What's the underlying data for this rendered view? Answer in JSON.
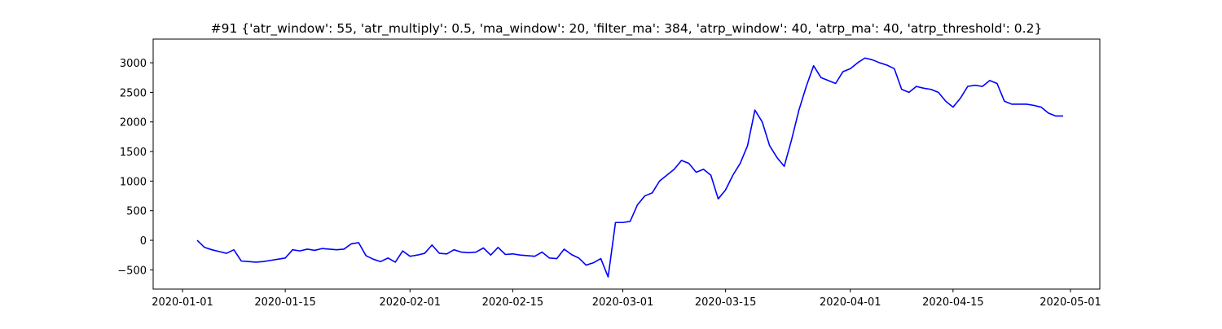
{
  "chart_data": {
    "type": "line",
    "title": "#91 {'atr_window': 55, 'atr_multiply': 0.5, 'ma_window': 20, 'filter_ma': 384, 'atrp_window': 40, 'atrp_ma': 40, 'atrp_threshold': 0.2}",
    "x": [
      "2020-01-03",
      "2020-01-04",
      "2020-01-05",
      "2020-01-06",
      "2020-01-07",
      "2020-01-08",
      "2020-01-09",
      "2020-01-10",
      "2020-01-11",
      "2020-01-12",
      "2020-01-13",
      "2020-01-14",
      "2020-01-15",
      "2020-01-16",
      "2020-01-17",
      "2020-01-18",
      "2020-01-19",
      "2020-01-20",
      "2020-01-21",
      "2020-01-22",
      "2020-01-23",
      "2020-01-24",
      "2020-01-25",
      "2020-01-26",
      "2020-01-27",
      "2020-01-28",
      "2020-01-29",
      "2020-01-30",
      "2020-01-31",
      "2020-02-01",
      "2020-02-02",
      "2020-02-03",
      "2020-02-04",
      "2020-02-05",
      "2020-02-06",
      "2020-02-07",
      "2020-02-08",
      "2020-02-09",
      "2020-02-10",
      "2020-02-11",
      "2020-02-12",
      "2020-02-13",
      "2020-02-14",
      "2020-02-15",
      "2020-02-16",
      "2020-02-17",
      "2020-02-18",
      "2020-02-19",
      "2020-02-20",
      "2020-02-21",
      "2020-02-22",
      "2020-02-23",
      "2020-02-24",
      "2020-02-25",
      "2020-02-26",
      "2020-02-27",
      "2020-02-28",
      "2020-02-29",
      "2020-03-01",
      "2020-03-02",
      "2020-03-03",
      "2020-03-04",
      "2020-03-05",
      "2020-03-06",
      "2020-03-07",
      "2020-03-08",
      "2020-03-09",
      "2020-03-10",
      "2020-03-11",
      "2020-03-12",
      "2020-03-13",
      "2020-03-14",
      "2020-03-15",
      "2020-03-16",
      "2020-03-17",
      "2020-03-18",
      "2020-03-19",
      "2020-03-20",
      "2020-03-21",
      "2020-03-22",
      "2020-03-23",
      "2020-03-24",
      "2020-03-25",
      "2020-03-26",
      "2020-03-27",
      "2020-03-28",
      "2020-03-29",
      "2020-03-30",
      "2020-03-31",
      "2020-04-01",
      "2020-04-02",
      "2020-04-03",
      "2020-04-04",
      "2020-04-05",
      "2020-04-06",
      "2020-04-07",
      "2020-04-08",
      "2020-04-09",
      "2020-04-10",
      "2020-04-11",
      "2020-04-12",
      "2020-04-13",
      "2020-04-14",
      "2020-04-15",
      "2020-04-16",
      "2020-04-17",
      "2020-04-18",
      "2020-04-19",
      "2020-04-20",
      "2020-04-21",
      "2020-04-22",
      "2020-04-23",
      "2020-04-24",
      "2020-04-25",
      "2020-04-26",
      "2020-04-27",
      "2020-04-28",
      "2020-04-29",
      "2020-04-30"
    ],
    "series": [
      {
        "color": "#0000ff",
        "values": [
          0,
          -120,
          -160,
          -190,
          -220,
          -160,
          -350,
          -360,
          -370,
          -360,
          -340,
          -320,
          -300,
          -160,
          -180,
          -150,
          -170,
          -140,
          -150,
          -160,
          -150,
          -60,
          -40,
          -260,
          -320,
          -360,
          -300,
          -370,
          -180,
          -270,
          -250,
          -220,
          -80,
          -220,
          -230,
          -160,
          -200,
          -210,
          -200,
          -130,
          -250,
          -120,
          -240,
          -230,
          -250,
          -260,
          -270,
          -200,
          -300,
          -310,
          -150,
          -240,
          -300,
          -420,
          -380,
          -310,
          -620,
          300,
          300,
          320,
          600,
          750,
          800,
          1000,
          1100,
          1200,
          1350,
          1300,
          1150,
          1200,
          1100,
          700,
          850,
          1100,
          1300,
          1600,
          2200,
          2000,
          1600,
          1400,
          1250,
          1700,
          2200,
          2600,
          2950,
          2750,
          2700,
          2650,
          2850,
          2900,
          3000,
          3080,
          3050,
          3000,
          2960,
          2900,
          2550,
          2500,
          2600,
          2570,
          2550,
          2500,
          2350,
          2250,
          2400,
          2600,
          2620,
          2600,
          2700,
          2650,
          2350,
          2300,
          2300,
          2300,
          2280,
          2250,
          2150,
          2100,
          2100
        ]
      }
    ],
    "xlim": [
      "2019-12-28",
      "2020-05-05"
    ],
    "xticks": [
      "2020-01-01",
      "2020-01-15",
      "2020-02-01",
      "2020-02-15",
      "2020-03-01",
      "2020-03-15",
      "2020-04-01",
      "2020-04-15",
      "2020-05-01"
    ],
    "ylim": [
      -825,
      3400
    ],
    "yticks": [
      {
        "value": -500,
        "label": "−500"
      },
      0,
      500,
      1000,
      1500,
      2000,
      2500,
      3000
    ]
  }
}
